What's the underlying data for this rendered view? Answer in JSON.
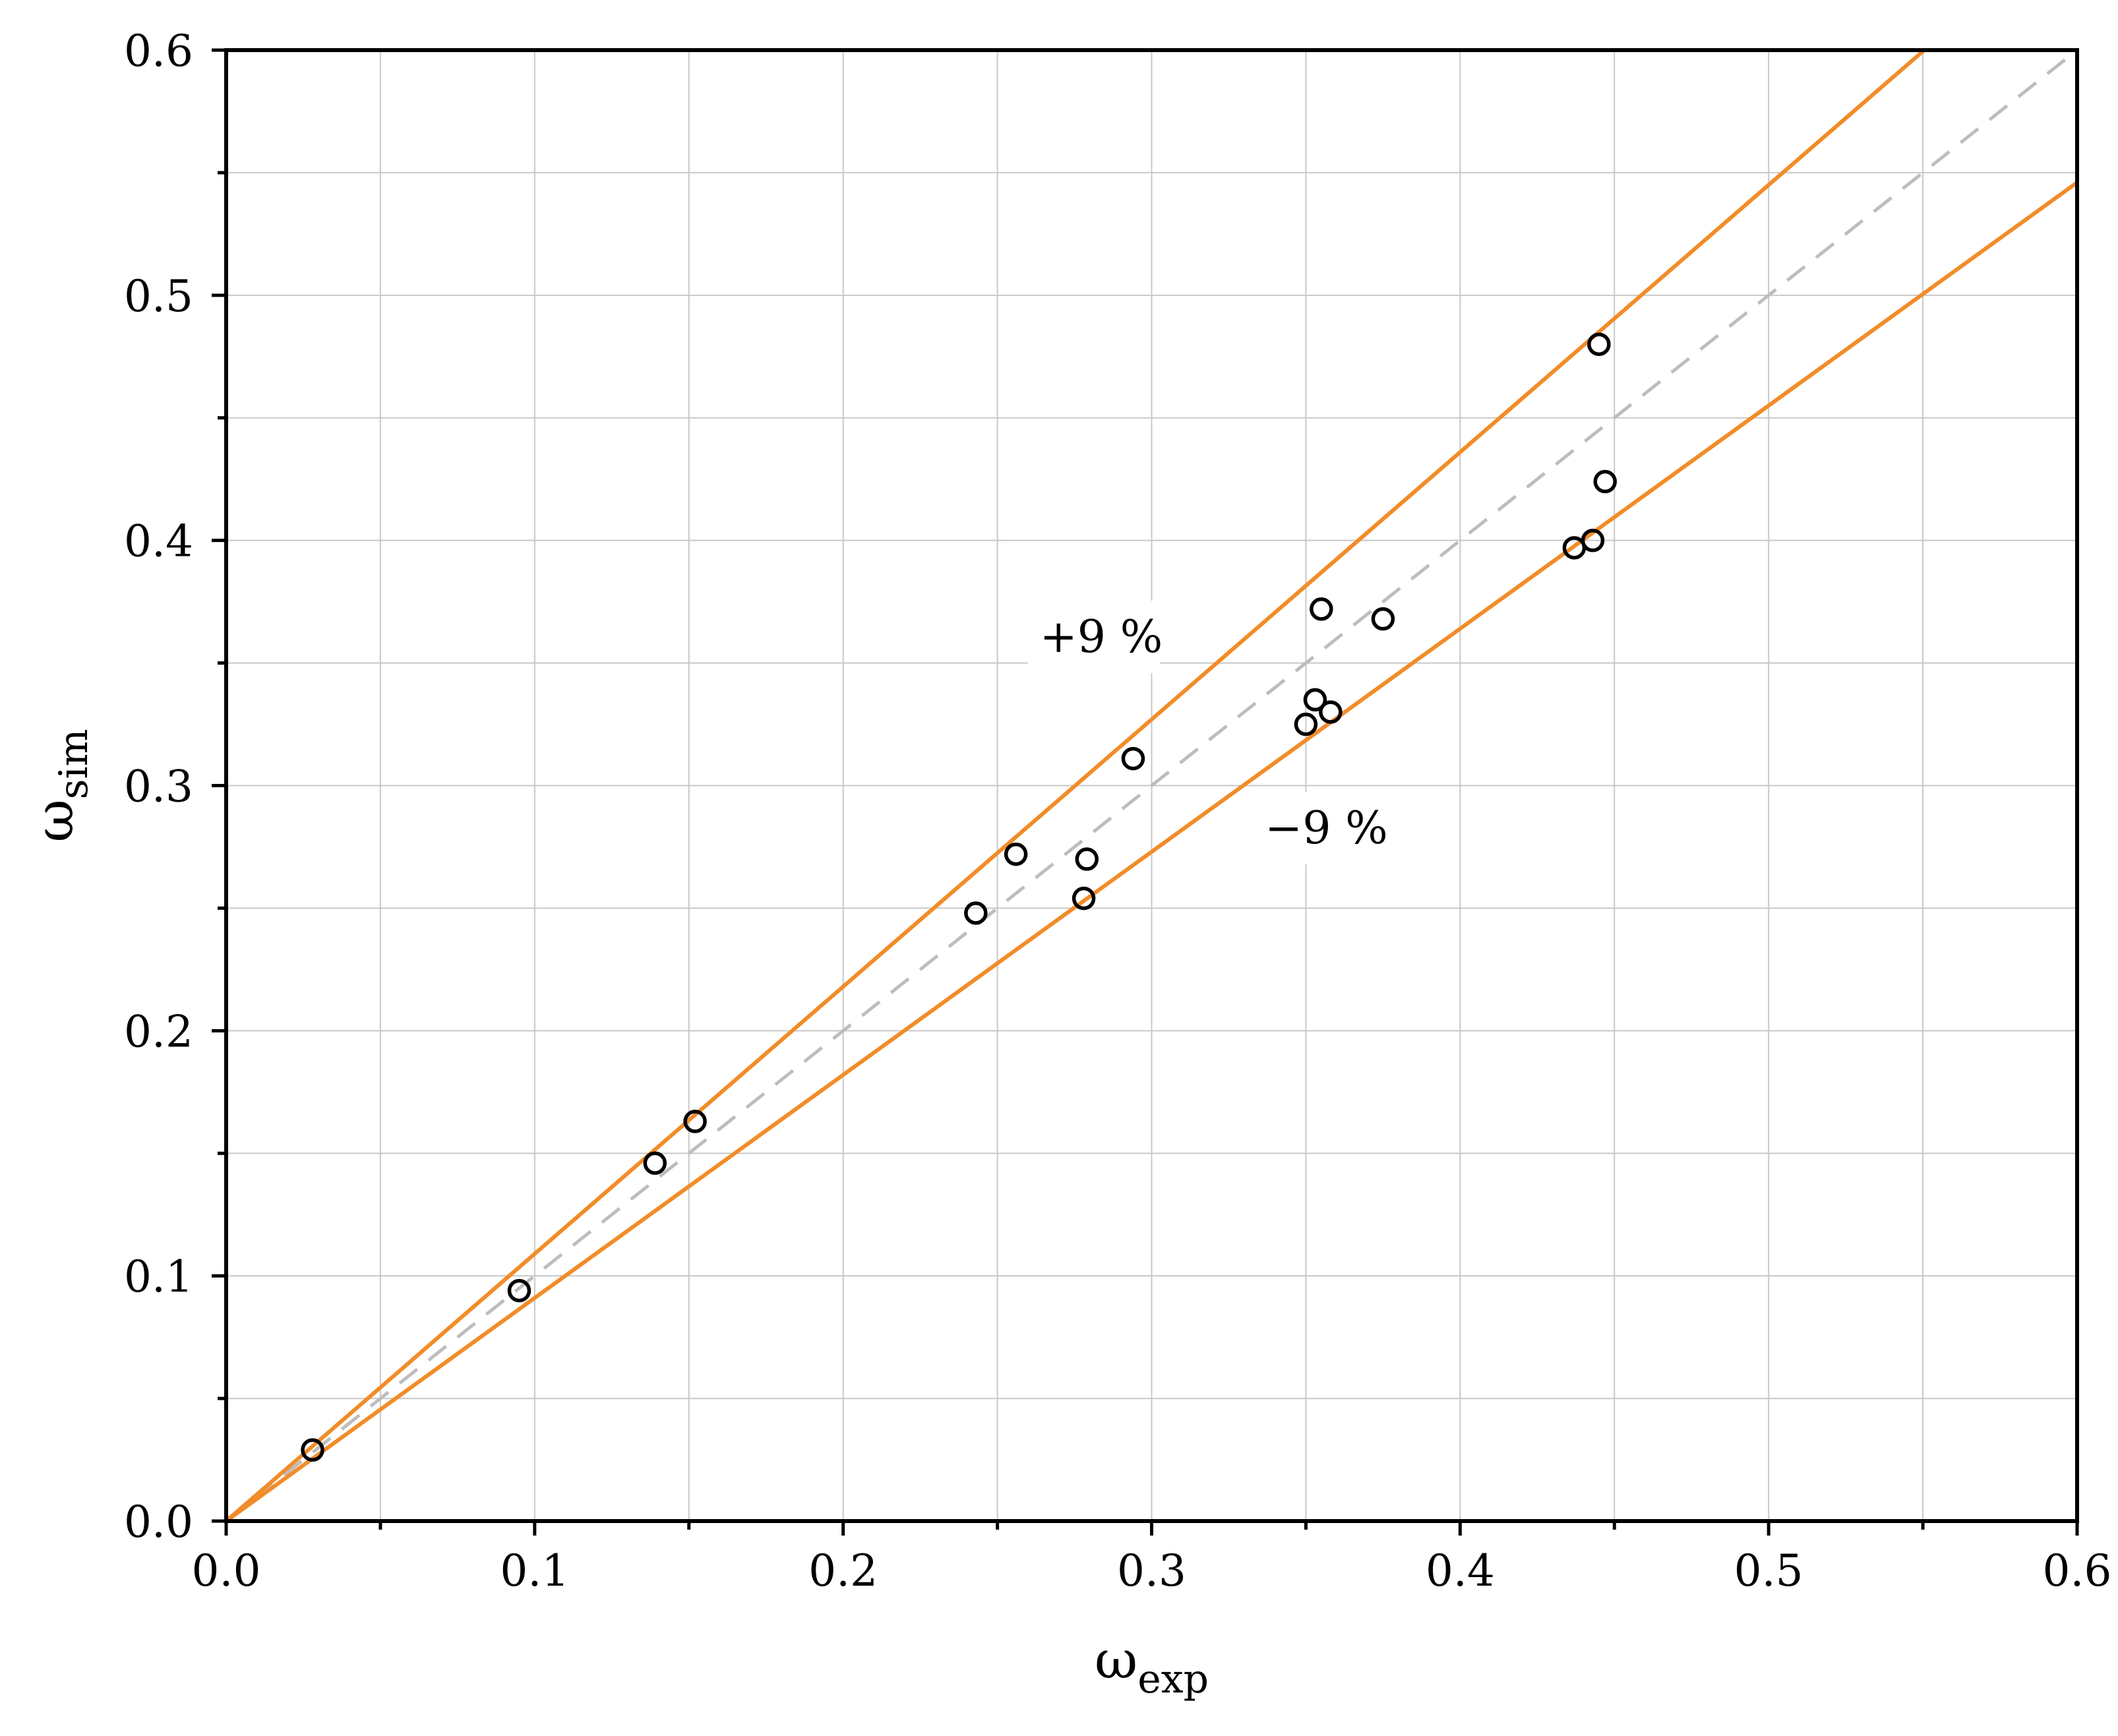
{
  "chart_data": {
    "type": "scatter",
    "title": "",
    "xlabel": {
      "symbol": "ω",
      "subscript": "exp"
    },
    "ylabel": {
      "symbol": "ω",
      "subscript": "sim"
    },
    "xlim": [
      0.0,
      0.6
    ],
    "ylim": [
      0.0,
      0.6
    ],
    "xticks": [
      0.0,
      0.1,
      0.2,
      0.3,
      0.4,
      0.5,
      0.6
    ],
    "yticks": [
      0.0,
      0.1,
      0.2,
      0.3,
      0.4,
      0.5,
      0.6
    ],
    "xtick_labels": [
      "0.0",
      "0.1",
      "0.2",
      "0.3",
      "0.4",
      "0.5",
      "0.6"
    ],
    "ytick_labels": [
      "0.0",
      "0.1",
      "0.2",
      "0.3",
      "0.4",
      "0.5",
      "0.6"
    ],
    "minor_step": 0.05,
    "grid": true,
    "points": [
      {
        "x": 0.028,
        "y": 0.029
      },
      {
        "x": 0.095,
        "y": 0.094
      },
      {
        "x": 0.139,
        "y": 0.146
      },
      {
        "x": 0.152,
        "y": 0.163
      },
      {
        "x": 0.243,
        "y": 0.248
      },
      {
        "x": 0.256,
        "y": 0.272
      },
      {
        "x": 0.278,
        "y": 0.254
      },
      {
        "x": 0.279,
        "y": 0.27
      },
      {
        "x": 0.294,
        "y": 0.311
      },
      {
        "x": 0.35,
        "y": 0.325
      },
      {
        "x": 0.353,
        "y": 0.335
      },
      {
        "x": 0.355,
        "y": 0.372
      },
      {
        "x": 0.358,
        "y": 0.33
      },
      {
        "x": 0.375,
        "y": 0.368
      },
      {
        "x": 0.437,
        "y": 0.397
      },
      {
        "x": 0.443,
        "y": 0.4
      },
      {
        "x": 0.445,
        "y": 0.48
      },
      {
        "x": 0.447,
        "y": 0.424
      }
    ],
    "reference_lines": [
      {
        "kind": "identity",
        "slope": 1.0,
        "style": "dashed",
        "color": "#bdbdbd"
      },
      {
        "kind": "upper",
        "slope": 1.09,
        "style": "solid",
        "color": "#f28c28",
        "label": "+9 %",
        "label_x": 0.262,
        "label_y": 0.355
      },
      {
        "kind": "lower",
        "slope": 0.91,
        "style": "solid",
        "color": "#f28c28",
        "label": "−9 %",
        "label_x": 0.335,
        "label_y": 0.277
      }
    ],
    "colors": {
      "marker": "#000000",
      "grid": "#c8c8c8",
      "axis": "#000000"
    }
  }
}
